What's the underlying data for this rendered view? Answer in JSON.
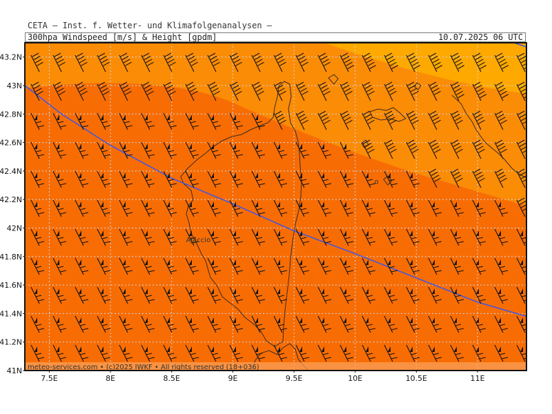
{
  "header": {
    "title": "CETA — Inst. f. Wetter- und Klimafolgenanalysen —",
    "subtitle": "300hpa Windspeed [m/s] & Height [gpdm]",
    "datetime": "10.07.2025 06 UTC"
  },
  "map": {
    "lon_range": [
      7.3,
      11.4
    ],
    "lat_range": [
      41.0,
      43.3
    ],
    "lon_ticks": [
      "7.5E",
      "8E",
      "8.5E",
      "9E",
      "9.5E",
      "10E",
      "10.5E",
      "11E"
    ],
    "lon_tick_values": [
      7.5,
      8.0,
      8.5,
      9.0,
      9.5,
      10.0,
      10.5,
      11.0
    ],
    "lat_ticks": [
      "43.2N",
      "43N",
      "42.8N",
      "42.6N",
      "42.4N",
      "42.2N",
      "42N",
      "41.8N",
      "41.6N",
      "41.4N",
      "41.2N",
      "41N"
    ],
    "lat_tick_values": [
      43.2,
      43.0,
      42.8,
      42.6,
      42.4,
      42.2,
      42.0,
      41.8,
      41.6,
      41.4,
      41.2,
      41.0
    ],
    "grid": true,
    "places": [
      {
        "name": "Ajaccio",
        "lon": 8.73,
        "lat": 41.92
      },
      {
        "name": "o",
        "lon": 10.27,
        "lat": 42.33
      }
    ],
    "credit": "meteo-services.com • (c)2025 IWKF • All rights reserved (18+036)",
    "colors": {
      "zone_low": "#f76d04",
      "zone_mid": "#fb8c06",
      "zone_high": "#fda900",
      "height_line": "#3a55ee",
      "coast": "#3a2a20",
      "barb": "#111111",
      "grid": "#cfd8e8"
    },
    "height_contour": [
      [
        7.3,
        43.0
      ],
      [
        7.6,
        42.8
      ],
      [
        8.0,
        42.58
      ],
      [
        8.5,
        42.35
      ],
      [
        9.0,
        42.17
      ],
      [
        9.5,
        41.98
      ],
      [
        10.0,
        41.82
      ],
      [
        10.5,
        41.65
      ],
      [
        11.0,
        41.48
      ],
      [
        11.4,
        41.38
      ]
    ]
  }
}
